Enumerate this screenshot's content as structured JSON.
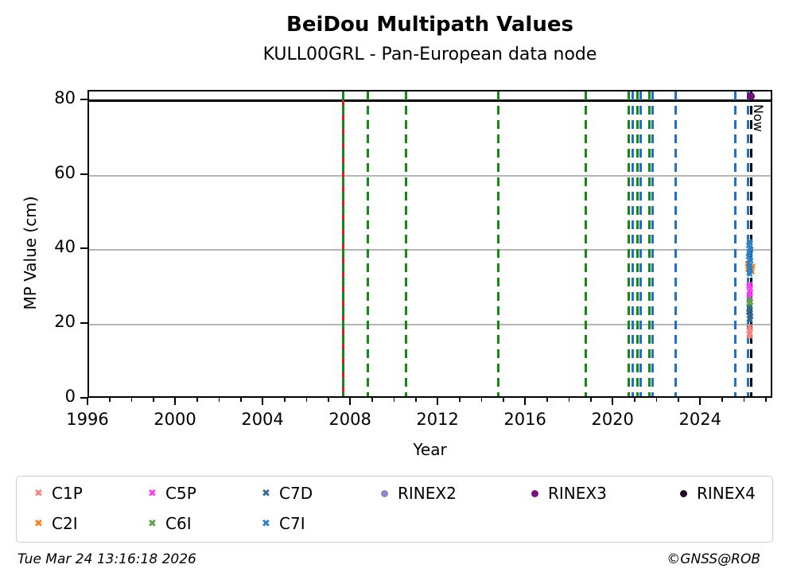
{
  "header": {
    "title": "BeiDou Multipath Values",
    "subtitle": "KULL00GRL - Pan-European data node"
  },
  "footer": {
    "timestamp": "Tue Mar 24 13:16:18 2026",
    "credit": "©GNSS@ROB"
  },
  "chart_data": {
    "type": "scatter",
    "title": "BeiDou Multipath Values",
    "subtitle": "KULL00GRL - Pan-European data node",
    "xlabel": "Year",
    "ylabel": "MP Value (cm)",
    "xlim": [
      1996,
      2027.3
    ],
    "ylim": [
      0,
      82.5
    ],
    "xticks": [
      1996,
      2000,
      2004,
      2008,
      2012,
      2016,
      2020,
      2024
    ],
    "x_minor_step": 1,
    "yticks": [
      0,
      20,
      40,
      60,
      80
    ],
    "grid_y": [
      20,
      40,
      60
    ],
    "grid_color": "#b5b5b5",
    "hline": {
      "y": 80,
      "color": "#000000"
    },
    "now_line": {
      "year": 2026.25,
      "label": "Now",
      "color": "#000000",
      "style": "dashed"
    },
    "event_lines": [
      {
        "year": 2007.62,
        "color": "#d41f1f",
        "style": "solid"
      },
      {
        "year": 2007.62,
        "color": "#148a14",
        "style": "dashed"
      },
      {
        "year": 2008.75,
        "color": "#148a14",
        "style": "dashed"
      },
      {
        "year": 2010.5,
        "color": "#148a14",
        "style": "dashed"
      },
      {
        "year": 2014.7,
        "color": "#148a14",
        "style": "dashed"
      },
      {
        "year": 2018.7,
        "color": "#148a14",
        "style": "dashed"
      },
      {
        "year": 2020.68,
        "color": "#148a14",
        "style": "dashed"
      },
      {
        "year": 2020.85,
        "color": "#2070c8",
        "style": "dashed"
      },
      {
        "year": 2021.05,
        "color": "#148a14",
        "style": "dashed"
      },
      {
        "year": 2021.2,
        "color": "#2070c8",
        "style": "dashed"
      },
      {
        "year": 2021.6,
        "color": "#148a14",
        "style": "dashed"
      },
      {
        "year": 2021.75,
        "color": "#2070c8",
        "style": "dashed"
      },
      {
        "year": 2022.8,
        "color": "#2070c8",
        "style": "dashed"
      },
      {
        "year": 2025.55,
        "color": "#2070c8",
        "style": "dashed"
      },
      {
        "year": 2026.12,
        "color": "#2070c8",
        "style": "dashed"
      }
    ],
    "series": [
      {
        "name": "C1P",
        "color": "#f2867e",
        "marker": "x",
        "points": [
          [
            2026.19,
            19.3
          ],
          [
            2026.23,
            18.8
          ],
          [
            2026.16,
            18.3
          ],
          [
            2026.21,
            17.8
          ],
          [
            2026.18,
            17.3
          ],
          [
            2026.22,
            16.9
          ]
        ]
      },
      {
        "name": "C2I",
        "color": "#f58220",
        "marker": "x",
        "points": [
          [
            2026.1,
            36.3
          ],
          [
            2026.33,
            35.7
          ],
          [
            2026.12,
            34.8
          ],
          [
            2026.3,
            34.2
          ]
        ]
      },
      {
        "name": "C5P",
        "color": "#f93bf3",
        "marker": "x",
        "points": [
          [
            2026.2,
            30.7
          ],
          [
            2026.16,
            30.2
          ],
          [
            2026.23,
            29.6
          ],
          [
            2026.18,
            29.0
          ],
          [
            2026.22,
            28.4
          ],
          [
            2026.17,
            27.8
          ],
          [
            2026.21,
            27.2
          ]
        ]
      },
      {
        "name": "C6I",
        "color": "#5b9e49",
        "marker": "x",
        "points": [
          [
            2026.19,
            26.7
          ],
          [
            2026.23,
            26.1
          ],
          [
            2026.16,
            25.5
          ],
          [
            2026.21,
            24.9
          ]
        ]
      },
      {
        "name": "C7D",
        "color": "#33688f",
        "marker": "x",
        "points": [
          [
            2026.18,
            24.5
          ],
          [
            2026.22,
            23.9
          ],
          [
            2026.15,
            23.3
          ],
          [
            2026.2,
            22.7
          ],
          [
            2026.24,
            22.1
          ],
          [
            2026.18,
            21.5
          ],
          [
            2026.21,
            21.0
          ]
        ]
      },
      {
        "name": "C7I",
        "color": "#2d80c4",
        "marker": "x",
        "points": [
          [
            2026.18,
            42.2
          ],
          [
            2026.22,
            41.7
          ],
          [
            2026.15,
            41.1
          ],
          [
            2026.2,
            40.5
          ],
          [
            2026.25,
            40.0
          ],
          [
            2026.17,
            39.4
          ],
          [
            2026.22,
            38.8
          ],
          [
            2026.14,
            38.2
          ],
          [
            2026.2,
            37.6
          ],
          [
            2026.24,
            37.0
          ],
          [
            2026.16,
            36.4
          ],
          [
            2026.21,
            35.8
          ],
          [
            2026.18,
            35.2
          ],
          [
            2026.23,
            34.6
          ],
          [
            2026.17,
            34.0
          ],
          [
            2026.2,
            33.4
          ]
        ]
      },
      {
        "name": "RINEX2",
        "color": "#8f87c7",
        "marker": "circle",
        "points": []
      },
      {
        "name": "RINEX3",
        "color": "#7d0f7d",
        "marker": "circle",
        "points": [
          [
            2026.25,
            81.3
          ]
        ]
      },
      {
        "name": "RINEX4",
        "color": "#200a26",
        "marker": "circle",
        "points": []
      }
    ],
    "legend_order": [
      "C1P",
      "C5P",
      "C7D",
      "RINEX2",
      "RINEX3",
      "RINEX4",
      "C2I",
      "C6I",
      "C7I"
    ]
  }
}
